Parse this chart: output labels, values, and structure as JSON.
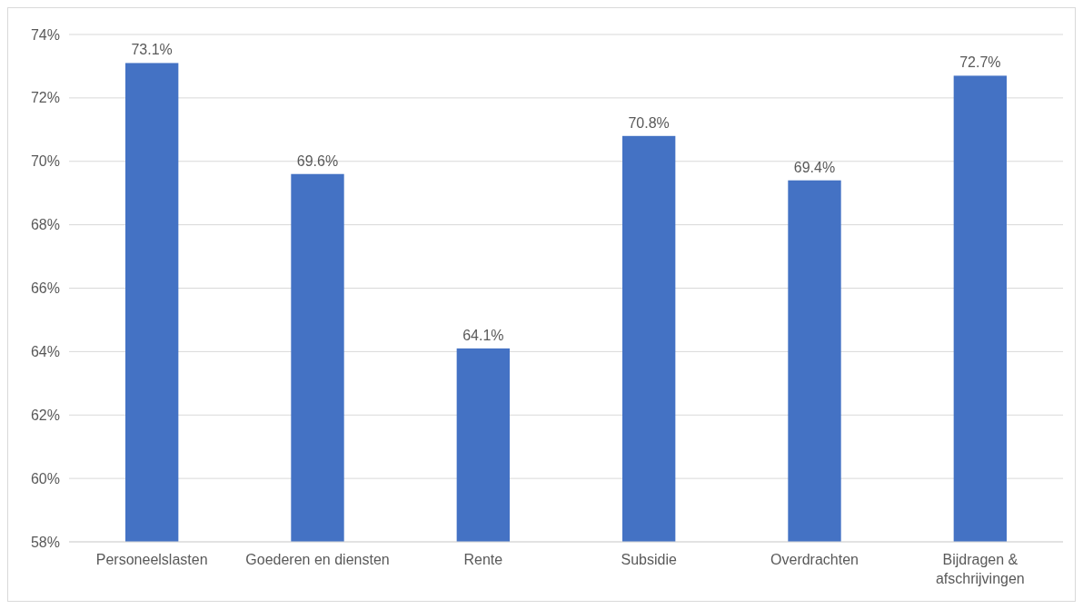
{
  "chart_data": {
    "type": "bar",
    "categories": [
      "Personeelslasten",
      "Goederen en diensten",
      "Rente",
      "Subsidie",
      "Overdrachten",
      "Bijdragen & afschrijvingen"
    ],
    "values": [
      73.1,
      69.6,
      64.1,
      70.8,
      69.4,
      72.7
    ],
    "value_labels": [
      "73.1%",
      "69.6%",
      "64.1%",
      "70.8%",
      "69.4%",
      "72.7%"
    ],
    "color": "#4472c4",
    "ylim": [
      58,
      74
    ],
    "yticks": [
      {
        "value": 58,
        "label": "58%"
      },
      {
        "value": 60,
        "label": "60%"
      },
      {
        "value": 62,
        "label": "62%"
      },
      {
        "value": 64,
        "label": "64%"
      },
      {
        "value": 66,
        "label": "66%"
      },
      {
        "value": 68,
        "label": "68%"
      },
      {
        "value": 70,
        "label": "70%"
      },
      {
        "value": 72,
        "label": "72%"
      },
      {
        "value": 74,
        "label": "74%"
      }
    ],
    "grid": "y"
  }
}
